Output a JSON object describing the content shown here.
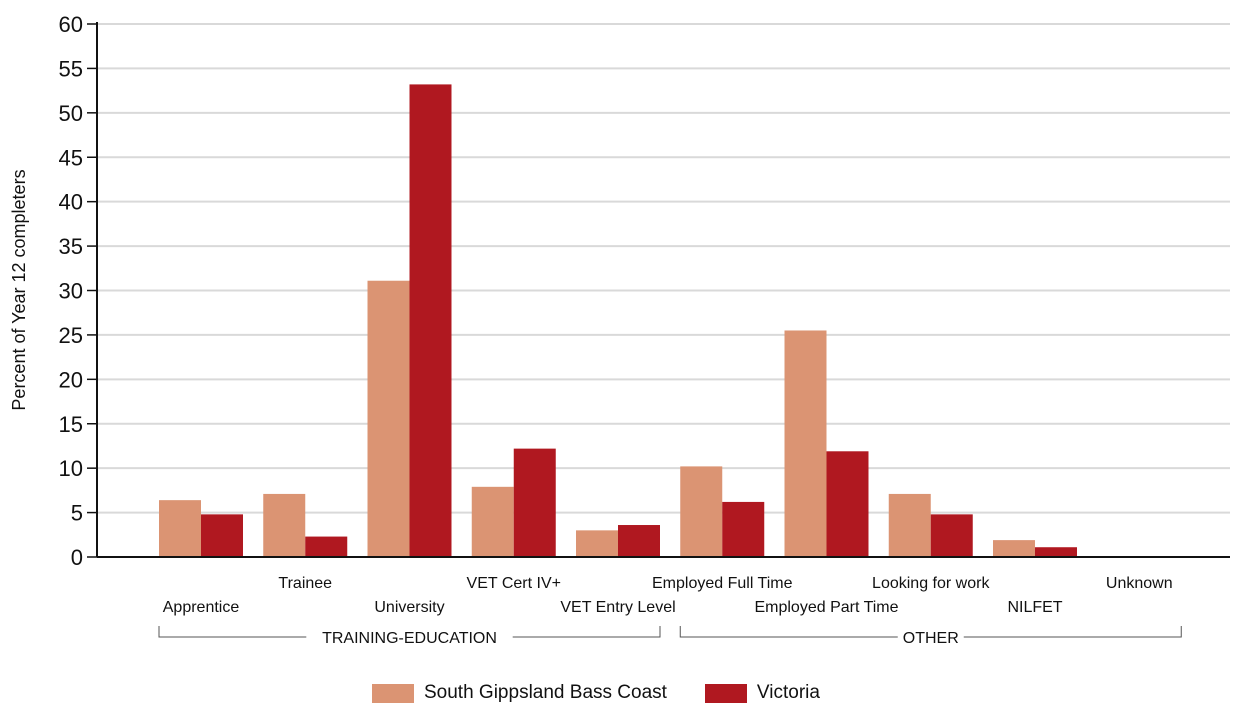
{
  "chart_data": {
    "type": "bar",
    "ylabel": "Percent of Year 12 completers",
    "ylim": [
      0,
      60
    ],
    "yticks": [
      0,
      5,
      10,
      15,
      20,
      25,
      30,
      35,
      40,
      45,
      50,
      55,
      60
    ],
    "grid": true,
    "categories": [
      "Apprentice",
      "Trainee",
      "University",
      "VET Cert IV+",
      "VET Entry Level",
      "Employed Full Time",
      "Employed Part Time",
      "Looking for work",
      "NILFET",
      "Unknown"
    ],
    "groups": [
      {
        "label": "TRAINING-EDUCATION",
        "categories": [
          "Apprentice",
          "Trainee",
          "University",
          "VET Cert IV+",
          "VET Entry Level"
        ]
      },
      {
        "label": "OTHER",
        "categories": [
          "Employed Full Time",
          "Employed Part Time",
          "Looking for work",
          "NILFET",
          "Unknown"
        ]
      }
    ],
    "series": [
      {
        "name": "South Gippsland Bass Coast",
        "color": "#db9473",
        "values": [
          6.4,
          7.1,
          31.1,
          7.9,
          3.0,
          10.2,
          25.5,
          7.1,
          1.9,
          0
        ]
      },
      {
        "name": "Victoria",
        "color": "#b01820",
        "values": [
          4.8,
          2.3,
          53.2,
          12.2,
          3.6,
          6.2,
          11.9,
          4.8,
          1.1,
          0
        ]
      }
    ],
    "legend_position": "bottom-center"
  }
}
